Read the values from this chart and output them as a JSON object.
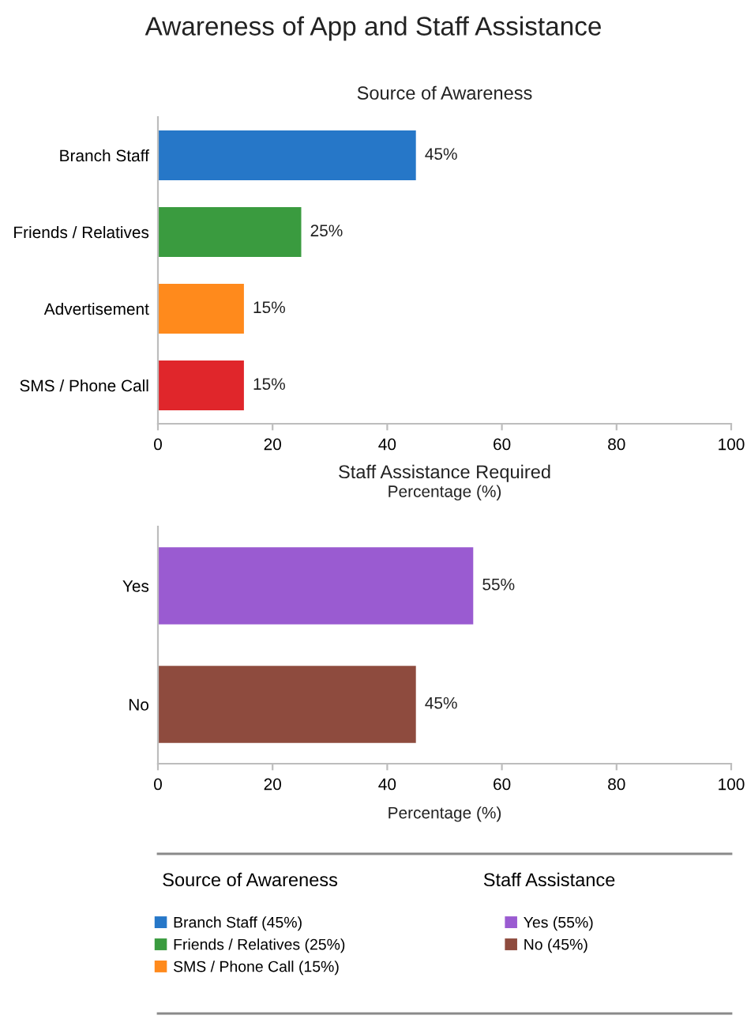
{
  "chart_data": [
    {
      "type": "bar",
      "orientation": "horizontal",
      "title": "Awareness of App and Staff Assistance",
      "subtitle": "Source of Awareness",
      "xlabel": "Percentage (%)",
      "categories": [
        "Branch Staff",
        "Friends / Relatives",
        "Advertisement",
        "SMS / Phone Call"
      ],
      "series": [
        {
          "name": "Branch Staff (45%)",
          "color": "#2677c8",
          "values": [
            45,
            null,
            null,
            null
          ],
          "value_labels": [
            "45%",
            null,
            null,
            null
          ]
        },
        {
          "name": "Friends / Relatives (25%)",
          "color": "#3a9b3f",
          "values": [
            null,
            25,
            null,
            null
          ],
          "value_labels": [
            null,
            "25%",
            null,
            null
          ]
        },
        {
          "name": "SMS / Phone Call (15%)",
          "color": "#ff8a1c",
          "values": [
            null,
            null,
            15,
            null
          ],
          "value_labels": [
            null,
            null,
            "15%",
            null
          ]
        },
        {
          "color": "#e0262b",
          "values": [
            null,
            null,
            null,
            15
          ],
          "value_labels": [
            null,
            null,
            null,
            "15%"
          ]
        }
      ],
      "xlim": [
        0,
        100
      ],
      "xticks": [
        0,
        20,
        40,
        60,
        80,
        100
      ],
      "legend": "bottom",
      "legend_title": "Source of Awareness"
    },
    {
      "type": "bar",
      "orientation": "horizontal",
      "title": "Staff Assistance Required",
      "xlabel": "Percentage (%)",
      "categories": [
        "Yes",
        "No"
      ],
      "series": [
        {
          "name": "Yes (55%)",
          "color": "#9a5bd1",
          "values": [
            55,
            null
          ],
          "value_labels": [
            "55%",
            null
          ]
        },
        {
          "name": "No (45%)",
          "color": "#8e4b3e",
          "values": [
            null,
            45
          ],
          "value_labels": [
            null,
            "45%"
          ]
        }
      ],
      "xlim": [
        0,
        100
      ],
      "xticks": [
        0,
        20,
        40,
        60,
        80,
        100
      ],
      "legend": "bottom",
      "legend_title": "Staff Assistance"
    }
  ]
}
